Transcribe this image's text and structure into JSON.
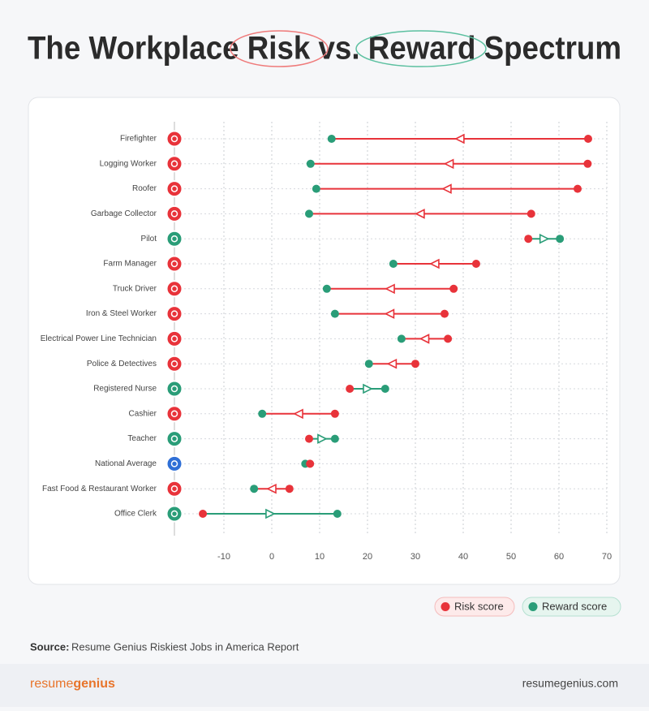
{
  "chart_data": {
    "type": "dumbbell",
    "title": "The Workplace Risk vs. Reward Spectrum",
    "categories": [
      "Firefighter",
      "Logging Worker",
      "Roofer",
      "Garbage Collector",
      "Pilot",
      "Farm Manager",
      "Truck Driver",
      "Iron & Steel Worker",
      "Electrical Power Line Technician",
      "Police & Detectives",
      "Registered Nurse",
      "Cashier",
      "Teacher",
      "National Average",
      "Fast Food & Restaurant Worker",
      "Office Clerk"
    ],
    "series": [
      {
        "name": "Risk score",
        "color": "#e8333a",
        "values": [
          66.1,
          66,
          63.9,
          54.2,
          53.6,
          42.7,
          38,
          36.1,
          36.8,
          30,
          16.3,
          13.2,
          7.8,
          8,
          3.7,
          -14.4
        ]
      },
      {
        "name": "Reward score",
        "color": "#2a9d78",
        "values": [
          12.5,
          8.1,
          9.3,
          7.8,
          60.2,
          25.4,
          11.5,
          13.2,
          27.1,
          20.3,
          23.7,
          -2,
          13.2,
          7,
          -3.7,
          13.7
        ]
      }
    ],
    "icon_colors": [
      "#e8333a",
      "#e8333a",
      "#e8333a",
      "#e8333a",
      "#2a9d78",
      "#e8333a",
      "#e8333a",
      "#e8333a",
      "#e8333a",
      "#e8333a",
      "#2a9d78",
      "#e8333a",
      "#2a9d78",
      "#2f6fd6",
      "#e8333a",
      "#2a9d78"
    ],
    "xlim": [
      -20,
      70
    ],
    "xticks": [
      -10,
      0,
      10,
      20,
      30,
      40,
      50,
      60,
      70
    ],
    "grid": true
  },
  "source": {
    "label": "Source:",
    "text": "Resume Genius Riskiest Jobs in America Report"
  },
  "footer": {
    "brand": [
      "resume",
      "genius"
    ],
    "website": "resumegenius.com"
  }
}
